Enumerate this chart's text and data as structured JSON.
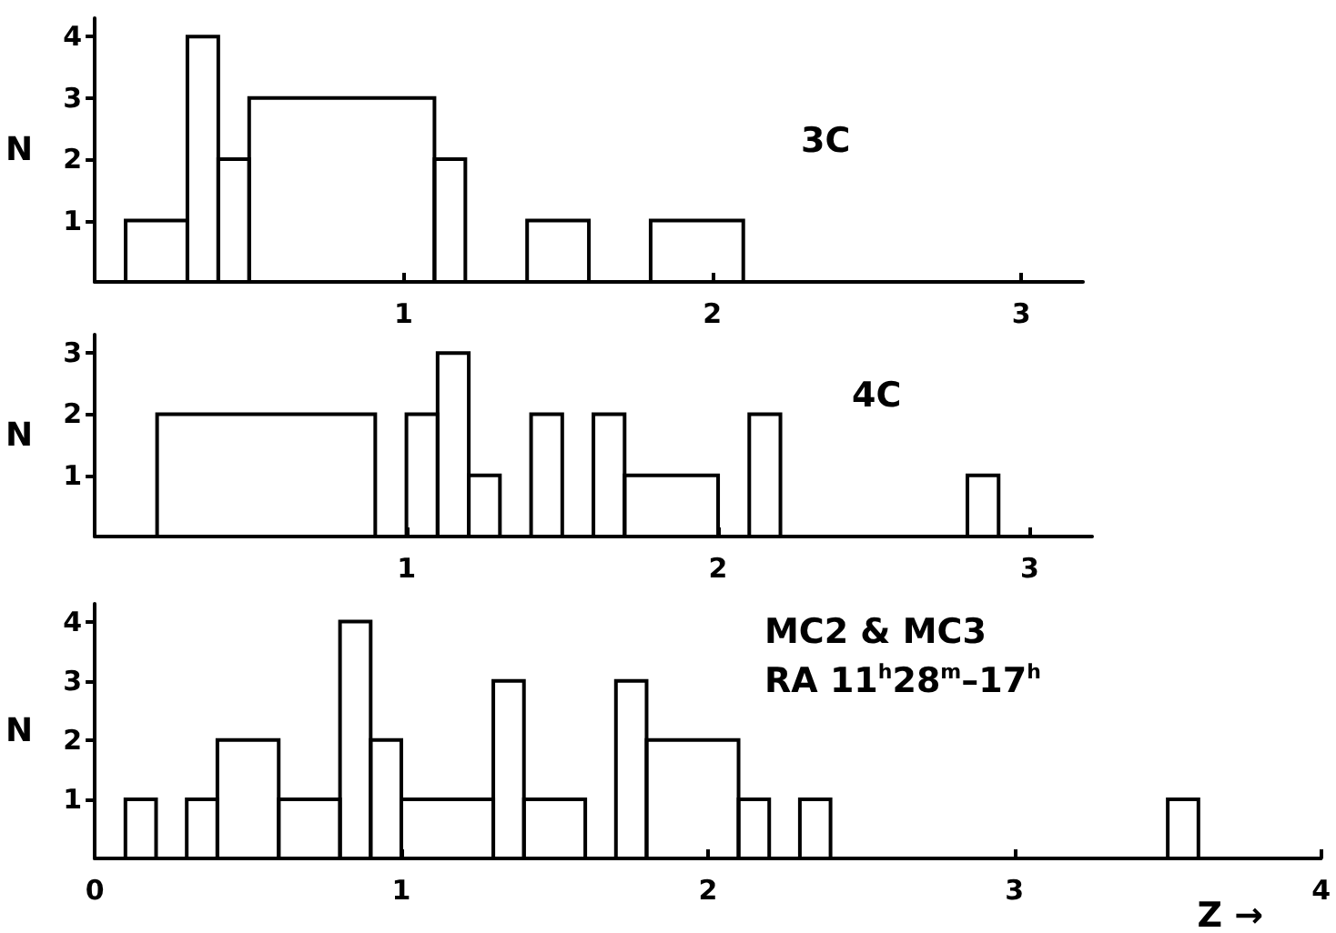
{
  "chart_data": [
    {
      "type": "histogram",
      "ylabel": "N",
      "annotations": [
        "3C"
      ],
      "color": "#000000",
      "bins": [
        0,
        0.1,
        0.3,
        0.4,
        0.5,
        1.1,
        1.2,
        1.4,
        1.6,
        1.8,
        2.1,
        3.2
      ],
      "values": [
        0,
        1,
        4,
        2,
        3,
        2,
        0,
        1,
        0,
        1,
        0
      ],
      "xlim": [
        0,
        3.2
      ],
      "xticks": [
        1,
        2,
        3
      ],
      "ylim": [
        0,
        4.3
      ],
      "yticks": [
        1,
        2,
        3,
        4
      ],
      "grid": false
    },
    {
      "type": "histogram",
      "ylabel": "N",
      "annotations": [
        "4C"
      ],
      "color": "#000000",
      "bins": [
        0,
        0.2,
        0.9,
        1.0,
        1.1,
        1.2,
        1.3,
        1.4,
        1.5,
        1.6,
        1.7,
        2.0,
        2.1,
        2.2,
        2.8,
        2.9,
        3.2
      ],
      "values": [
        0,
        2,
        0,
        2,
        3,
        1,
        0,
        2,
        0,
        2,
        1,
        0,
        2,
        0,
        1,
        0
      ],
      "xlim": [
        0,
        3.2
      ],
      "xticks": [
        1,
        2,
        3
      ],
      "ylim": [
        0,
        3.3
      ],
      "yticks": [
        1,
        2,
        3
      ],
      "grid": false
    },
    {
      "type": "histogram",
      "ylabel": "N",
      "xlabel": "Z →",
      "annotations": [
        "MC2 & MC3",
        "RA 11$^{h}$28$^{m}$–17$^{h}$"
      ],
      "color": "#000000",
      "bins": [
        0,
        0.1,
        0.2,
        0.3,
        0.4,
        0.6,
        0.8,
        0.9,
        1.0,
        1.3,
        1.4,
        1.6,
        1.7,
        1.8,
        2.1,
        2.2,
        2.3,
        2.4,
        3.5,
        3.6,
        4.0
      ],
      "values": [
        0,
        1,
        0,
        1,
        2,
        1,
        4,
        2,
        1,
        3,
        1,
        0,
        3,
        2,
        1,
        0,
        1,
        0,
        1,
        0
      ],
      "xlim": [
        0,
        4.0
      ],
      "xticks": [
        0,
        1,
        2,
        3,
        4
      ],
      "ylim": [
        0,
        4.3
      ],
      "yticks": [
        1,
        2,
        3,
        4
      ],
      "grid": false
    }
  ]
}
